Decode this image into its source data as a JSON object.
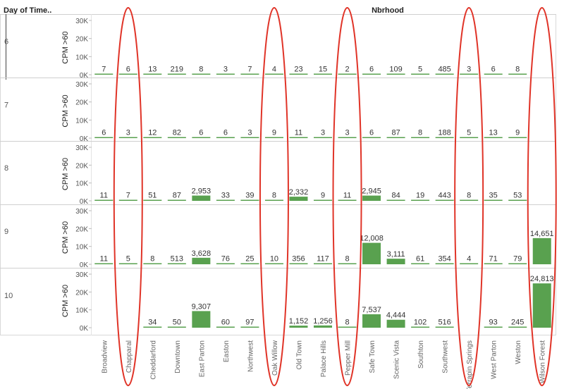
{
  "header": {
    "row_field": "Day of Time..",
    "column_field": "Nbrhood"
  },
  "chart_data": {
    "type": "bar",
    "title": "",
    "xlabel": "",
    "ylabel": "CPM >60",
    "ylim": [
      0,
      30000
    ],
    "y_ticks": [
      "0K",
      "10K",
      "20K",
      "30K"
    ],
    "y_tick_values": [
      0,
      10000,
      20000,
      30000
    ],
    "grid": false,
    "bar_color": "#59a14f",
    "annotation_color": "#e03428",
    "categories": [
      "Broadview",
      "Chapparal",
      "Cheddarford",
      "Downtown",
      "East Parton",
      "Easton",
      "Northwest",
      "Oak Willow",
      "Old Town",
      "Palace Hills",
      "Pepper Mill",
      "Safe Town",
      "Scenic Vista",
      "Southton",
      "Southwest",
      "Terrapin Springs",
      "West Parton",
      "Weston",
      "Wilson Forest"
    ],
    "highlighted_categories": [
      "Chapparal",
      "Oak Willow",
      "Pepper Mill",
      "Terrapin Springs",
      "Wilson Forest"
    ],
    "series": [
      {
        "name": "6",
        "values": [
          7,
          6,
          13,
          219,
          8,
          3,
          7,
          4,
          23,
          15,
          2,
          6,
          109,
          5,
          485,
          3,
          6,
          8,
          null
        ],
        "labels": [
          "7",
          "6",
          "13",
          "219",
          "8",
          "3",
          "7",
          "4",
          "23",
          "15",
          "2",
          "6",
          "109",
          "5",
          "485",
          "3",
          "6",
          "8",
          ""
        ]
      },
      {
        "name": "7",
        "values": [
          6,
          3,
          12,
          82,
          6,
          6,
          3,
          9,
          11,
          3,
          3,
          6,
          87,
          8,
          188,
          5,
          13,
          9,
          null
        ],
        "labels": [
          "6",
          "3",
          "12",
          "82",
          "6",
          "6",
          "3",
          "9",
          "11",
          "3",
          "3",
          "6",
          "87",
          "8",
          "188",
          "5",
          "13",
          "9",
          ""
        ]
      },
      {
        "name": "8",
        "values": [
          11,
          7,
          51,
          87,
          2953,
          33,
          39,
          8,
          2332,
          9,
          11,
          2945,
          84,
          19,
          443,
          8,
          35,
          53,
          null
        ],
        "labels": [
          "11",
          "7",
          "51",
          "87",
          "2,953",
          "33",
          "39",
          "8",
          "2,332",
          "9",
          "11",
          "2,945",
          "84",
          "19",
          "443",
          "8",
          "35",
          "53",
          ""
        ]
      },
      {
        "name": "9",
        "values": [
          11,
          5,
          8,
          513,
          3628,
          76,
          25,
          10,
          356,
          117,
          8,
          12008,
          3111,
          61,
          354,
          4,
          71,
          79,
          14651
        ],
        "labels": [
          "11",
          "5",
          "8",
          "513",
          "3,628",
          "76",
          "25",
          "10",
          "356",
          "117",
          "8",
          "12,008",
          "3,111",
          "61",
          "354",
          "4",
          "71",
          "79",
          "14,651"
        ]
      },
      {
        "name": "10",
        "values": [
          null,
          null,
          34,
          50,
          9307,
          60,
          97,
          null,
          1152,
          1256,
          8,
          7537,
          4444,
          102,
          516,
          null,
          93,
          245,
          24813
        ],
        "labels": [
          "",
          "",
          "34",
          "50",
          "9,307",
          "60",
          "97",
          "",
          "1,152",
          "1,256",
          "8",
          "7,537",
          "4,444",
          "102",
          "516",
          "",
          "93",
          "245",
          "24,813"
        ]
      }
    ]
  }
}
